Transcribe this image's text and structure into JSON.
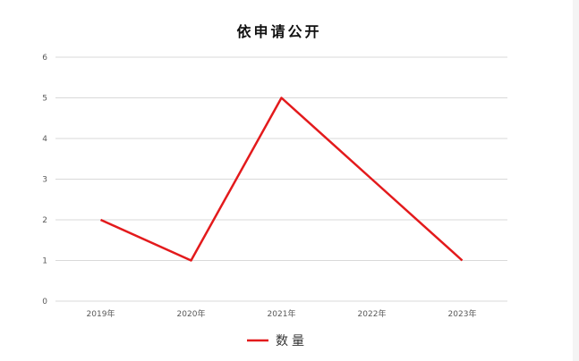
{
  "chart_data": {
    "type": "line",
    "title": "依申请公开",
    "categories": [
      "2019年",
      "2020年",
      "2021年",
      "2022年",
      "2023年"
    ],
    "series": [
      {
        "name": "数量",
        "values": [
          2,
          1,
          5,
          3,
          1
        ],
        "color": "#e31a1c"
      }
    ],
    "ylim": [
      0,
      6
    ],
    "yticks": [
      "0",
      "1",
      "2",
      "3",
      "4",
      "5",
      "6"
    ],
    "grid": true,
    "legend": "bottom"
  }
}
